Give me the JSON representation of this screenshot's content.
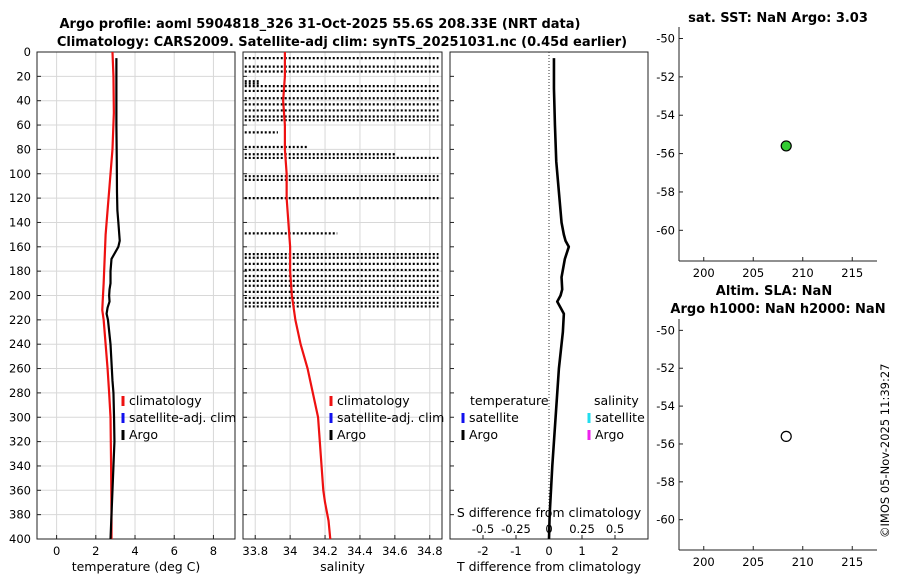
{
  "title": {
    "line1": "Argo profile: aoml 5904818_326 31-Oct-2025 55.6S 208.33E (NRT data)",
    "line2": "Climatology: CARS2009. Satellite-adj clim: synTS_20251031.nc (0.45d earlier)"
  },
  "sst_title": "sat. SST: NaN Argo: 3.03",
  "sla_title_1": "Altim. SLA: NaN",
  "sla_title_2": "Argo h1000: NaN h2000: NaN",
  "credit": "©IMOS 05-Nov-2025 11:39:27",
  "colors": {
    "climatology": "#ee1111",
    "satellite_adj": "#1111ee",
    "argo": "#000000",
    "sat_salinity": "#22ddee",
    "argo_salinity": "#ee22ee",
    "argo_marker": "#33cc33"
  },
  "legends": {
    "temp": [
      "climatology",
      "satellite-adj. clim",
      "Argo"
    ],
    "sal": [
      "climatology",
      "satellite-adj. clim",
      "Argo"
    ],
    "diff_temp_header": "temperature",
    "diff_sal_header": "salinity",
    "diff_temp": [
      "satellite",
      "Argo"
    ],
    "diff_sal": [
      "satellite",
      "Argo"
    ]
  },
  "chart_data": [
    {
      "type": "line",
      "name": "temperature-profile",
      "xlabel": "temperature (deg C)",
      "xlim": [
        -1,
        9.1
      ],
      "ylim": [
        0,
        400
      ],
      "y_reversed": true,
      "xticks": [
        0,
        2,
        4,
        6,
        8
      ],
      "yticks": [
        0,
        20,
        40,
        60,
        80,
        100,
        120,
        140,
        160,
        180,
        200,
        220,
        240,
        260,
        280,
        300,
        320,
        340,
        360,
        380,
        400
      ],
      "grid": true,
      "legend_position": "lower-right",
      "series": [
        {
          "name": "climatology",
          "style": "solid",
          "x": [
            2.85,
            2.9,
            2.92,
            2.85,
            2.7,
            2.6,
            2.5,
            2.45,
            2.4,
            2.35,
            2.33,
            2.4,
            2.5,
            2.6,
            2.68,
            2.75,
            2.78,
            2.8,
            2.8
          ],
          "y": [
            0,
            20,
            50,
            80,
            110,
            130,
            150,
            170,
            190,
            205,
            212,
            220,
            240,
            260,
            280,
            300,
            340,
            380,
            400
          ]
        },
        {
          "name": "Argo",
          "style": "solid",
          "x": [
            3.05,
            3.05,
            3.05,
            3.07,
            3.08,
            3.1,
            3.15,
            3.22,
            3.15,
            2.8,
            2.75,
            2.75,
            2.7,
            2.68,
            2.7,
            2.6,
            2.55,
            2.62,
            2.75,
            2.85,
            2.9,
            2.93,
            2.95,
            2.9,
            2.85,
            2.8,
            2.75
          ],
          "y": [
            5,
            30,
            60,
            90,
            115,
            130,
            140,
            155,
            160,
            170,
            180,
            190,
            195,
            200,
            205,
            210,
            215,
            220,
            240,
            270,
            280,
            300,
            320,
            340,
            360,
            380,
            400
          ]
        }
      ]
    },
    {
      "type": "line",
      "name": "salinity-profile",
      "xlabel": "salinity",
      "xlim": [
        33.73,
        34.87
      ],
      "ylim": [
        0,
        400
      ],
      "y_reversed": true,
      "xticks": [
        33.8,
        34.0,
        34.2,
        34.4,
        34.6,
        34.8
      ],
      "xticklabels": [
        "33.8",
        "34",
        "34.2",
        "34.4",
        "34.6",
        "34.8"
      ],
      "grid": true,
      "legend_position": "lower-right",
      "series": [
        {
          "name": "climatology",
          "style": "solid",
          "x": [
            33.97,
            33.97,
            33.96,
            33.97,
            33.97,
            33.98,
            33.98,
            33.99,
            34.0,
            34.0,
            34.01,
            34.03,
            34.06,
            34.1,
            34.13,
            34.16,
            34.17,
            34.18,
            34.19,
            34.2,
            34.22,
            34.23
          ],
          "y": [
            0,
            20,
            40,
            60,
            80,
            100,
            120,
            140,
            160,
            180,
            200,
            220,
            240,
            260,
            280,
            300,
            320,
            340,
            360,
            370,
            385,
            400
          ]
        },
        {
          "name": "Argo",
          "style": "dotted",
          "rows": [
            {
              "y": 5,
              "x": [
                33.74,
                34.85
              ]
            },
            {
              "y": 12,
              "x": [
                33.74,
                34.85
              ]
            },
            {
              "y": 16,
              "x": [
                33.74,
                34.85
              ]
            },
            {
              "y": 24,
              "x": [
                33.74,
                33.82
              ]
            },
            {
              "y": 26,
              "x": [
                33.74,
                33.82
              ]
            },
            {
              "y": 28,
              "x": [
                33.74,
                34.85
              ]
            },
            {
              "y": 32,
              "x": [
                33.74,
                34.85
              ]
            },
            {
              "y": 38,
              "x": [
                33.74,
                34.85
              ]
            },
            {
              "y": 43,
              "x": [
                33.74,
                34.85
              ]
            },
            {
              "y": 48,
              "x": [
                33.74,
                34.85
              ]
            },
            {
              "y": 53,
              "x": [
                33.74,
                34.85
              ]
            },
            {
              "y": 56,
              "x": [
                33.74,
                34.85
              ]
            },
            {
              "y": 66,
              "x": [
                33.74,
                33.93
              ]
            },
            {
              "y": 78,
              "x": [
                33.74,
                34.1
              ]
            },
            {
              "y": 84,
              "x": [
                33.74,
                34.6
              ]
            },
            {
              "y": 87,
              "x": [
                33.74,
                34.85
              ]
            },
            {
              "y": 102,
              "x": [
                33.74,
                34.85
              ]
            },
            {
              "y": 105,
              "x": [
                33.74,
                34.85
              ]
            },
            {
              "y": 120,
              "x": [
                33.74,
                34.85
              ]
            },
            {
              "y": 149,
              "x": [
                33.74,
                34.27
              ]
            },
            {
              "y": 166,
              "x": [
                33.74,
                34.85
              ]
            },
            {
              "y": 169,
              "x": [
                33.74,
                34.85
              ]
            },
            {
              "y": 174,
              "x": [
                33.74,
                34.85
              ]
            },
            {
              "y": 179,
              "x": [
                33.74,
                34.85
              ]
            },
            {
              "y": 184,
              "x": [
                33.74,
                34.85
              ]
            },
            {
              "y": 188,
              "x": [
                33.74,
                34.85
              ]
            },
            {
              "y": 192,
              "x": [
                33.74,
                34.85
              ]
            },
            {
              "y": 197,
              "x": [
                33.74,
                34.85
              ]
            },
            {
              "y": 202,
              "x": [
                33.74,
                34.85
              ]
            },
            {
              "y": 206,
              "x": [
                33.74,
                34.85
              ]
            },
            {
              "y": 209,
              "x": [
                33.74,
                34.85
              ]
            }
          ]
        }
      ]
    },
    {
      "type": "line",
      "name": "difference-profile",
      "xlabel": "T difference from climatology",
      "xlabel2": "S difference from climatology",
      "xlim": [
        -3,
        3
      ],
      "ylim": [
        0,
        400
      ],
      "y_reversed": true,
      "xticks": [
        -2,
        -1,
        0,
        1,
        2
      ],
      "sticks": [
        -0.5,
        -0.25,
        0,
        0.25,
        0.5
      ],
      "sticklabels": [
        "-0.5",
        "-0.25",
        "0",
        "0.25",
        "0.5"
      ],
      "legend_position": "lower-left and lower-right",
      "series": [
        {
          "name": "Argo",
          "style": "solid",
          "x": [
            0.15,
            0.15,
            0.18,
            0.22,
            0.3,
            0.38,
            0.45,
            0.5,
            0.6,
            0.48,
            0.38,
            0.4,
            0.35,
            0.25,
            0.35,
            0.45,
            0.42,
            0.3,
            0.2,
            0.1,
            0.02,
            0.0
          ],
          "y": [
            5,
            30,
            60,
            90,
            115,
            140,
            150,
            155,
            160,
            170,
            185,
            195,
            200,
            205,
            210,
            215,
            230,
            260,
            300,
            340,
            380,
            400
          ]
        }
      ]
    },
    {
      "type": "scatter",
      "name": "sst-map",
      "xlim": [
        197.5,
        217.5
      ],
      "ylim": [
        -61.6,
        -49.4
      ],
      "xticks": [
        200,
        205,
        210,
        215
      ],
      "yticks": [
        -50,
        -52,
        -54,
        -56,
        -58,
        -60
      ],
      "points": [
        {
          "x": 208.33,
          "y": -55.6,
          "fill": "green"
        }
      ]
    },
    {
      "type": "scatter",
      "name": "sla-map",
      "xlim": [
        197.5,
        217.5
      ],
      "ylim": [
        -61.6,
        -49.4
      ],
      "xticks": [
        200,
        205,
        210,
        215
      ],
      "yticks": [
        -50,
        -52,
        -54,
        -56,
        -58,
        -60
      ],
      "points": [
        {
          "x": 208.33,
          "y": -55.6,
          "fill": "white"
        }
      ]
    }
  ]
}
